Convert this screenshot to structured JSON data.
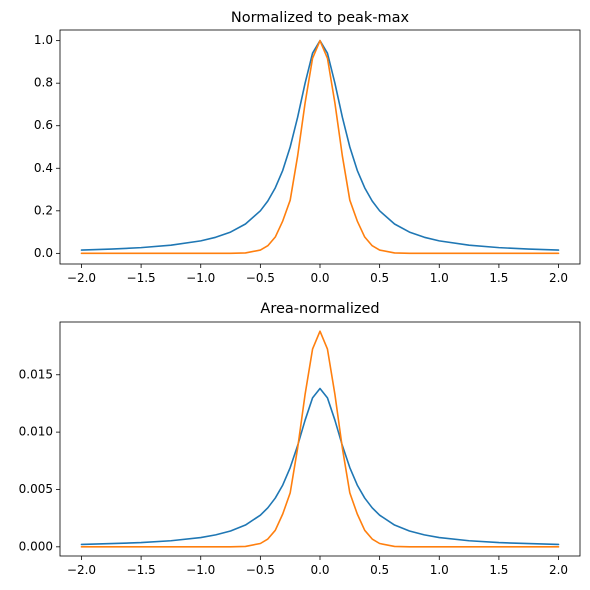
{
  "chart_data": [
    {
      "type": "line",
      "title": "Normalized to peak-max",
      "xlabel": "",
      "ylabel": "",
      "xlim": [
        -2.18,
        2.18
      ],
      "ylim": [
        -0.05,
        1.05
      ],
      "xticks": [
        -2.0,
        -1.5,
        -1.0,
        -0.5,
        0.0,
        0.5,
        1.0,
        1.5,
        2.0
      ],
      "xtick_labels": [
        "−2.0",
        "−1.5",
        "−1.0",
        "−0.5",
        "0.0",
        "0.5",
        "1.0",
        "1.5",
        "2.0"
      ],
      "yticks": [
        0.0,
        0.2,
        0.4,
        0.6,
        0.8,
        1.0
      ],
      "ytick_labels": [
        "0.0",
        "0.2",
        "0.4",
        "0.6",
        "0.8",
        "1.0"
      ],
      "grid": false,
      "series": [
        {
          "color": "#1f77b4",
          "x": [
            -2.0,
            -1.75,
            -1.5,
            -1.25,
            -1.0,
            -0.875,
            -0.75,
            -0.625,
            -0.5,
            -0.4375,
            -0.375,
            -0.3125,
            -0.25,
            -0.1875,
            -0.125,
            -0.0625,
            0.0,
            0.0625,
            0.125,
            0.1875,
            0.25,
            0.3125,
            0.375,
            0.4375,
            0.5,
            0.625,
            0.75,
            0.875,
            1.0,
            1.25,
            1.5,
            1.75,
            2.0
          ],
          "values": [
            0.0154,
            0.02,
            0.027,
            0.0385,
            0.0588,
            0.0755,
            0.1,
            0.138,
            0.2,
            0.246,
            0.308,
            0.39,
            0.5,
            0.64,
            0.8,
            0.941,
            1.0,
            0.941,
            0.8,
            0.64,
            0.5,
            0.39,
            0.308,
            0.246,
            0.2,
            0.138,
            0.1,
            0.0755,
            0.0588,
            0.0385,
            0.027,
            0.02,
            0.0154
          ]
        },
        {
          "color": "#ff7f0e",
          "x": [
            -2.0,
            -1.0,
            -0.75,
            -0.625,
            -0.5,
            -0.4375,
            -0.375,
            -0.3125,
            -0.25,
            -0.1875,
            -0.125,
            -0.0625,
            0.0,
            0.0625,
            0.125,
            0.1875,
            0.25,
            0.3125,
            0.375,
            0.4375,
            0.5,
            0.625,
            0.75,
            1.0,
            2.0
          ],
          "values": [
            0.0,
            0.0,
            0.0002,
            0.0019,
            0.0156,
            0.0359,
            0.0768,
            0.152,
            0.25,
            0.458,
            0.707,
            0.917,
            1.0,
            0.917,
            0.707,
            0.458,
            0.25,
            0.152,
            0.0768,
            0.0359,
            0.0156,
            0.0019,
            0.0002,
            0.0,
            0.0
          ]
        }
      ]
    },
    {
      "type": "line",
      "title": "Area-normalized",
      "xlabel": "",
      "ylabel": "",
      "xlim": [
        -2.18,
        2.18
      ],
      "ylim": [
        -0.0008,
        0.0196
      ],
      "xticks": [
        -2.0,
        -1.5,
        -1.0,
        -0.5,
        0.0,
        0.5,
        1.0,
        1.5,
        2.0
      ],
      "xtick_labels": [
        "−2.0",
        "−1.5",
        "−1.0",
        "−0.5",
        "0.0",
        "0.5",
        "1.0",
        "1.5",
        "2.0"
      ],
      "yticks": [
        0.0,
        0.005,
        0.01,
        0.015
      ],
      "ytick_labels": [
        "0.000",
        "0.005",
        "0.010",
        "0.015"
      ],
      "grid": false,
      "series": [
        {
          "color": "#1f77b4",
          "x": [
            -2.0,
            -1.75,
            -1.5,
            -1.25,
            -1.0,
            -0.875,
            -0.75,
            -0.625,
            -0.5,
            -0.4375,
            -0.375,
            -0.3125,
            -0.25,
            -0.1875,
            -0.125,
            -0.0625,
            0.0,
            0.0625,
            0.125,
            0.1875,
            0.25,
            0.3125,
            0.375,
            0.4375,
            0.5,
            0.625,
            0.75,
            0.875,
            1.0,
            1.25,
            1.5,
            1.75,
            2.0
          ],
          "values": [
            0.00021,
            0.00028,
            0.00037,
            0.00053,
            0.00081,
            0.00104,
            0.00138,
            0.0019,
            0.00276,
            0.0034,
            0.00425,
            0.00538,
            0.0069,
            0.00883,
            0.01104,
            0.01299,
            0.0138,
            0.01299,
            0.01104,
            0.00883,
            0.0069,
            0.00538,
            0.00425,
            0.0034,
            0.00276,
            0.0019,
            0.00138,
            0.00104,
            0.00081,
            0.00053,
            0.00037,
            0.00028,
            0.00021
          ]
        },
        {
          "color": "#ff7f0e",
          "x": [
            -2.0,
            -1.0,
            -0.75,
            -0.625,
            -0.5,
            -0.4375,
            -0.375,
            -0.3125,
            -0.25,
            -0.1875,
            -0.125,
            -0.0625,
            0.0,
            0.0625,
            0.125,
            0.1875,
            0.25,
            0.3125,
            0.375,
            0.4375,
            0.5,
            0.625,
            0.75,
            1.0,
            2.0
          ],
          "values": [
            0.0,
            0.0,
            4e-06,
            3.6e-05,
            0.00029,
            0.00068,
            0.00144,
            0.00286,
            0.0047,
            0.00861,
            0.01329,
            0.01724,
            0.0188,
            0.01724,
            0.01329,
            0.00861,
            0.0047,
            0.00286,
            0.00144,
            0.00068,
            0.00029,
            3.6e-05,
            4e-06,
            0.0,
            0.0
          ]
        }
      ]
    }
  ]
}
